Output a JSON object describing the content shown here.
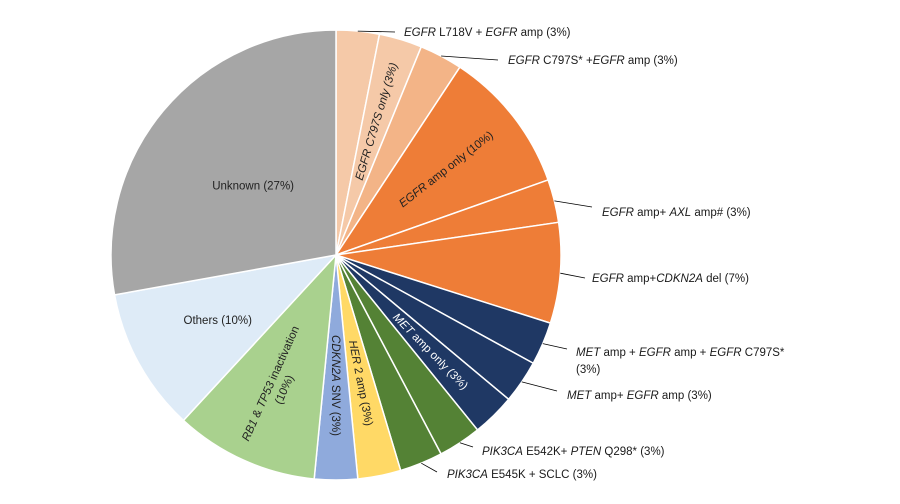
{
  "chart_data": {
    "type": "pie",
    "title": "",
    "slices": [
      {
        "value": 3,
        "color": "#f5c9a8",
        "label": [
          {
            "t": "EGFR",
            "i": true
          },
          {
            "t": " L718V + ",
            "i": false
          },
          {
            "t": "EGFR",
            "i": true
          },
          {
            "t": " amp (3%)",
            "i": false
          }
        ],
        "placement": "outside"
      },
      {
        "value": 3,
        "color": "#f5c9a8",
        "label": [
          {
            "t": "EGFR",
            "i": true
          },
          {
            "t": " C797S only (3%)",
            "i": true
          }
        ],
        "placement": "inside-radial"
      },
      {
        "value": 3,
        "color": "#f3b487",
        "label": [
          {
            "t": "EGFR",
            "i": true
          },
          {
            "t": " C797S* +",
            "i": false
          },
          {
            "t": "EGFR",
            "i": true
          },
          {
            "t": " amp (3%)",
            "i": false
          }
        ],
        "placement": "outside"
      },
      {
        "value": 10,
        "color": "#ee7d37",
        "label": [
          {
            "t": "EGFR",
            "i": true
          },
          {
            "t": " amp only (10%)",
            "i": false
          }
        ],
        "placement": "inside-radial"
      },
      {
        "value": 3,
        "color": "#ee7d37",
        "label": [
          {
            "t": "EGFR",
            "i": true
          },
          {
            "t": " amp+ ",
            "i": false
          },
          {
            "t": "AXL",
            "i": true
          },
          {
            "t": " amp# (3%)",
            "i": false
          }
        ],
        "placement": "outside"
      },
      {
        "value": 7,
        "color": "#ee7d37",
        "label": [
          {
            "t": "EGFR",
            "i": true
          },
          {
            "t": " amp+",
            "i": false
          },
          {
            "t": "CDKN2A",
            "i": true
          },
          {
            "t": " del (7%)",
            "i": false
          }
        ],
        "placement": "outside"
      },
      {
        "value": 3,
        "color": "#1f3864",
        "label": [
          {
            "t": "MET",
            "i": true
          },
          {
            "t": " amp + ",
            "i": false
          },
          {
            "t": "EGFR",
            "i": true
          },
          {
            "t": " amp + ",
            "i": false
          },
          {
            "t": "EGFR",
            "i": true
          },
          {
            "t": " C797S*",
            "i": false
          }
        ],
        "label2": [
          {
            "t": "(3%)",
            "i": false
          }
        ],
        "placement": "outside"
      },
      {
        "value": 3,
        "color": "#1f3864",
        "label": [
          {
            "t": "MET",
            "i": true
          },
          {
            "t": " amp+ ",
            "i": false
          },
          {
            "t": "EGFR",
            "i": true
          },
          {
            "t": " amp (3%)",
            "i": false
          }
        ],
        "placement": "outside"
      },
      {
        "value": 3,
        "color": "#1f3864",
        "label": [
          {
            "t": "MET",
            "i": true
          },
          {
            "t": " amp only (3%)",
            "i": false
          }
        ],
        "placement": "inside-radial"
      },
      {
        "value": 3,
        "color": "#548235",
        "label": [
          {
            "t": "PIK3CA",
            "i": true
          },
          {
            "t": " E542K+ ",
            "i": false
          },
          {
            "t": "PTEN",
            "i": true
          },
          {
            "t": " Q298* (3%)",
            "i": false
          }
        ],
        "placement": "outside"
      },
      {
        "value": 3,
        "color": "#548235",
        "label": [
          {
            "t": "PIK3CA",
            "i": true
          },
          {
            "t": " E545K + SCLC (3%)",
            "i": false
          }
        ],
        "placement": "outside"
      },
      {
        "value": 3,
        "color": "#ffd966",
        "label": [
          {
            "t": "HER",
            "i": true
          },
          {
            "t": " 2 amp (3%)",
            "i": false
          }
        ],
        "placement": "inside-radial"
      },
      {
        "value": 3,
        "color": "#8faadc",
        "label": [
          {
            "t": "CDKN2A",
            "i": true
          },
          {
            "t": " SNV (3%)",
            "i": false
          }
        ],
        "placement": "inside-radial"
      },
      {
        "value": 10,
        "color": "#a9d18e",
        "label": [
          {
            "t": "RB1",
            "i": true
          },
          {
            "t": " & ",
            "i": false
          },
          {
            "t": "TP53",
            "i": true
          },
          {
            "t": " inactivation",
            "i": false
          }
        ],
        "label2": [
          {
            "t": "(10%)",
            "i": false
          }
        ],
        "placement": "inside-radial"
      },
      {
        "value": 10,
        "color": "#deebf7",
        "label": [
          {
            "t": "Others (10%)",
            "i": false
          }
        ],
        "placement": "inside"
      },
      {
        "value": 27,
        "color": "#a6a6a6",
        "label": [
          {
            "t": "Unknown (27%)",
            "i": false
          }
        ],
        "placement": "inside"
      }
    ]
  }
}
